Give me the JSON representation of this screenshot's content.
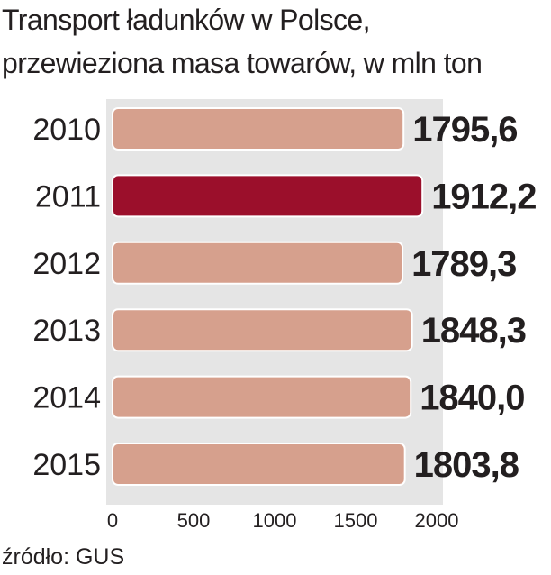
{
  "chart_data": {
    "type": "bar",
    "orientation": "horizontal",
    "title": "Transport ładunków w Polsce,",
    "subtitle": "przewieziona masa towarów, w mln ton",
    "categories": [
      "2010",
      "2011",
      "2012",
      "2013",
      "2014",
      "2015"
    ],
    "values": [
      1795.6,
      1912.2,
      1789.3,
      1848.3,
      1840.0,
      1803.8
    ],
    "value_labels": [
      "1795,6",
      "1912,2",
      "1789,3",
      "1848,3",
      "1840,0",
      "1803,8"
    ],
    "highlight_index": 1,
    "xlim": [
      0,
      2000
    ],
    "xticks": [
      "0",
      "500",
      "1000",
      "1500",
      "2000"
    ],
    "grid": false,
    "colors": {
      "bar": "#d6a08d",
      "highlight": "#9b0f2b",
      "plot_bg": "#e5e5e5",
      "bar_stroke": "#ffffff",
      "text": "#231f20"
    }
  },
  "source": "źródło: GUS"
}
